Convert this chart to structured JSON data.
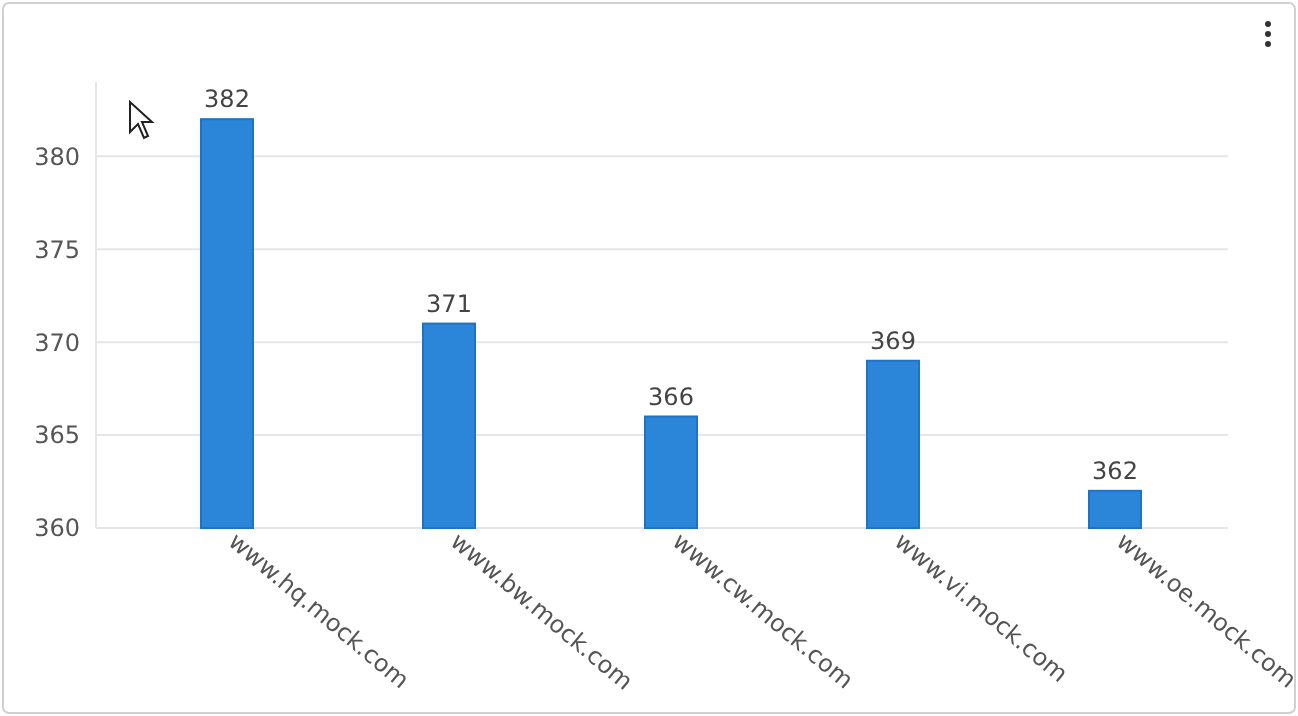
{
  "chart_data": {
    "type": "bar",
    "categories": [
      "www.hq.mock.com",
      "www.bw.mock.com",
      "www.cw.mock.com",
      "www.vi.mock.com",
      "www.oe.mock.com"
    ],
    "values": [
      382,
      371,
      366,
      369,
      362
    ],
    "color": "#2b86d9",
    "ylim": [
      360,
      384
    ],
    "yticks": [
      360,
      365,
      370,
      375,
      380
    ],
    "grid": "y",
    "data_labels": true
  }
}
